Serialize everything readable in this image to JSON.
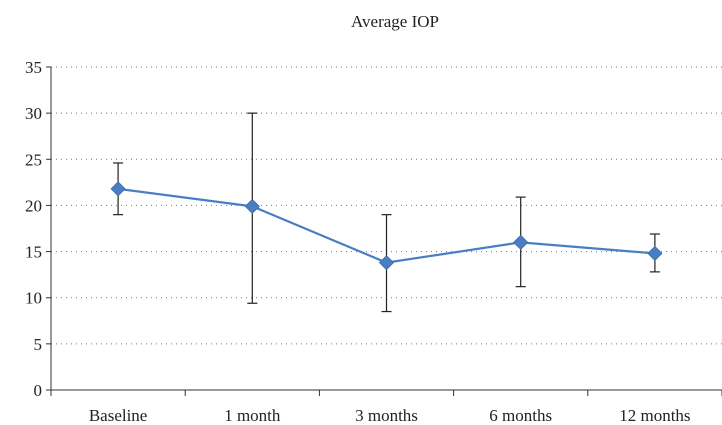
{
  "chart_data": {
    "type": "line",
    "title": "Average IOP",
    "xlabel": "",
    "ylabel": "",
    "categories": [
      "Baseline",
      "1 month",
      "3 months",
      "6 months",
      "12 months"
    ],
    "series": [
      {
        "values": [
          21.8,
          19.9,
          13.8,
          16.0,
          14.8
        ],
        "error_low": [
          19.0,
          9.4,
          8.5,
          11.2,
          12.8
        ],
        "error_high": [
          24.6,
          30.0,
          19.0,
          20.9,
          16.9
        ]
      }
    ],
    "ylim": [
      0,
      35
    ],
    "yticks": [
      "0",
      "5",
      "10",
      "15",
      "20",
      "25",
      "30",
      "35"
    ],
    "grid": true,
    "legend": "none",
    "colors": {
      "series": "#4a7ec2",
      "error_bar": "#222222"
    }
  }
}
